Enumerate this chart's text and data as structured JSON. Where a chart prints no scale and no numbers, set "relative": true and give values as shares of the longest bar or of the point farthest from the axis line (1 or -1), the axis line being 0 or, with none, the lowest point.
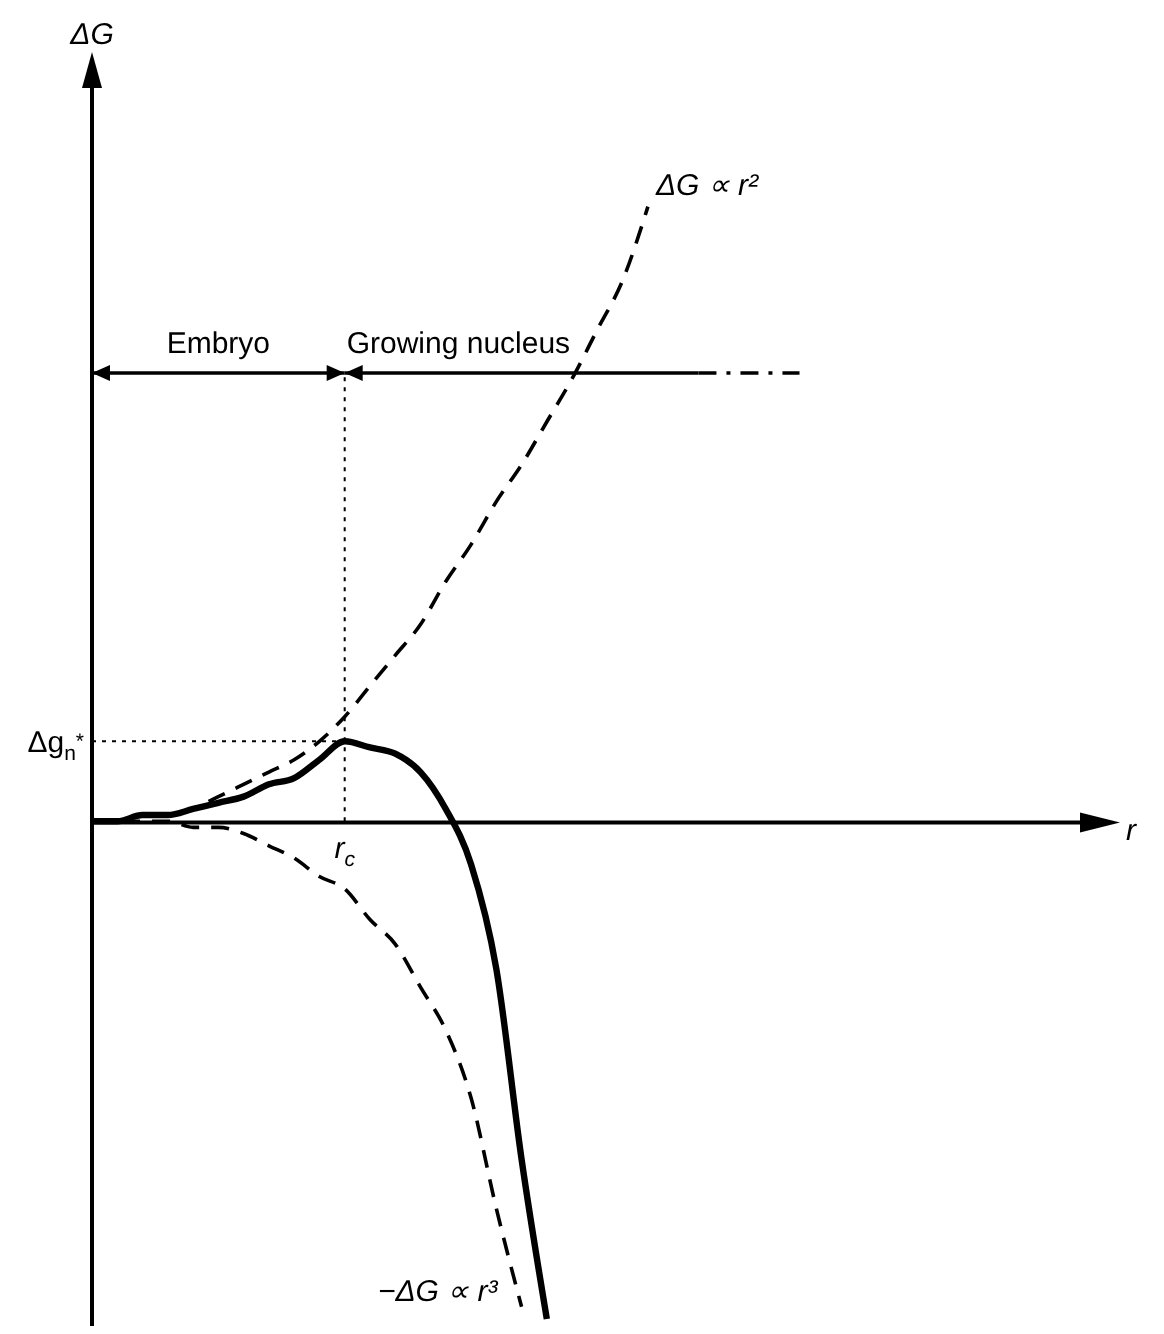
{
  "chart_data": {
    "type": "line",
    "relative": true,
    "marker": "none",
    "categories": [
      null,
      null,
      null,
      null,
      null,
      null,
      null,
      null,
      null,
      null,
      null,
      null,
      null,
      null,
      null,
      null,
      null,
      null,
      null,
      null,
      null,
      null,
      null
    ],
    "series": [
      {
        "name": "ΔG ∝ r²",
        "color": "#000000",
        "line_style": "dashed",
        "values": [
          0,
          0,
          0.01,
          0.01,
          0.02,
          0.04,
          0.06,
          0.08,
          0.1,
          0.13,
          0.17,
          0.22,
          0.27,
          0.32,
          0.39,
          0.45,
          0.52,
          0.58,
          0.65,
          0.72,
          0.8,
          0.88,
          1
        ]
      },
      {
        "name": "−ΔG ∝ r³",
        "color": "#000000",
        "line_style": "dashed",
        "values": [
          0,
          0,
          0,
          0,
          -0.01,
          -0.01,
          -0.02,
          -0.04,
          -0.06,
          -0.09,
          -0.11,
          -0.16,
          -0.2,
          -0.27,
          -0.34,
          -0.45,
          -0.63,
          -0.79,
          null,
          null,
          null,
          null,
          null
        ]
      },
      {
        "color": "#000000",
        "line_style": "solid",
        "values": [
          0,
          0,
          0.01,
          0.01,
          0.02,
          0.03,
          0.04,
          0.06,
          0.07,
          0.1,
          0.13,
          0.12,
          0.11,
          0.08,
          0.02,
          -0.07,
          -0.24,
          -0.55,
          -0.81,
          null,
          null,
          null,
          null
        ]
      }
    ],
    "ref_lines": [
      {
        "axis": "y",
        "value": 0.13,
        "label": "Δg$_{n}$$^{*}$",
        "line_style": "dotted",
        "color": "#000000"
      },
      {
        "axis": "x",
        "label": "r$_{c}$",
        "line_style": "dotted",
        "color": "#000000"
      }
    ],
    "annotations": [
      "Embryo",
      "Growing nucleus",
      "ΔG",
      "r"
    ]
  }
}
